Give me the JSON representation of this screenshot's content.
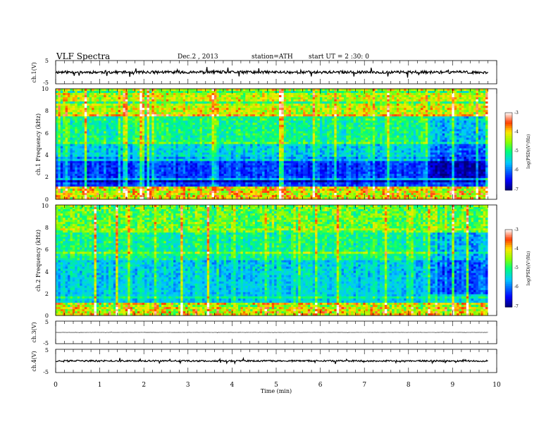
{
  "header": {
    "title": "VLF Spectra",
    "date": "Dec.2 , 2013",
    "station": "station=ATH",
    "start": "start UT = 2 :30: 0"
  },
  "chart_data": [
    {
      "type": "line",
      "panel": "ch1-waveform",
      "ylabel": "ch.1(V)",
      "ylim": [
        -5,
        5
      ],
      "y_ticks": [
        "5",
        "-5"
      ],
      "xlim": [
        0,
        10
      ],
      "baseline": 0,
      "noise_amplitude": 0.6,
      "end_x": 9.8
    },
    {
      "type": "heatmap",
      "panel": "ch1-spectrogram",
      "ylabel": "ch.1 Frequency (kHz)",
      "ylim": [
        0,
        10
      ],
      "y_ticks": [
        "0",
        "2",
        "4",
        "6",
        "8",
        "10"
      ],
      "xlim": [
        0,
        10
      ],
      "end_x": 9.8,
      "change_x": 8.5,
      "colorbar": {
        "label": "log(PSD)(V²/Hz)",
        "range": [
          -7,
          -3
        ],
        "ticks": [
          "-3",
          "-4",
          "-5",
          "-6",
          "-7"
        ]
      }
    },
    {
      "type": "heatmap",
      "panel": "ch2-spectrogram",
      "ylabel": "ch.2 Frequency (kHz)",
      "ylim": [
        0,
        10
      ],
      "y_ticks": [
        "0",
        "2",
        "4",
        "6",
        "8",
        "10"
      ],
      "xlim": [
        0,
        10
      ],
      "end_x": 9.8,
      "change_x": 8.5,
      "colorbar": {
        "label": "log(PSD)(V²/Hz)",
        "range": [
          -7,
          -3
        ],
        "ticks": [
          "-3",
          "-4",
          "-5",
          "-6",
          "-7"
        ]
      }
    },
    {
      "type": "line",
      "panel": "ch3-waveform",
      "ylabel": "ch.3(V)",
      "ylim": [
        -5,
        5
      ],
      "y_ticks": [
        "5",
        "-5"
      ],
      "xlim": [
        0,
        10
      ],
      "baseline": 0,
      "noise_amplitude": 0.05,
      "end_x": 9.8
    },
    {
      "type": "line",
      "panel": "ch4-waveform",
      "ylabel": "ch.4(V)",
      "ylim": [
        -5,
        5
      ],
      "y_ticks": [
        "5",
        "-5"
      ],
      "xlim": [
        0,
        10
      ],
      "baseline": 0,
      "noise_amplitude": 0.35,
      "end_x": 9.8
    }
  ],
  "x_axis": {
    "label": "Time (min)",
    "ticks": [
      "0",
      "1",
      "2",
      "3",
      "4",
      "5",
      "6",
      "7",
      "8",
      "9",
      "10"
    ]
  }
}
